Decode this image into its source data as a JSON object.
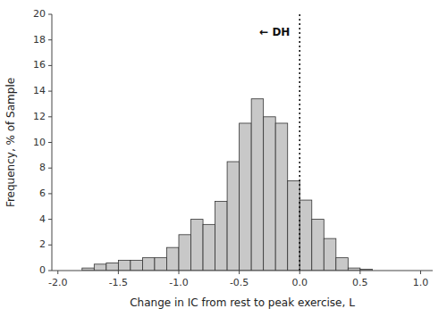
{
  "chart_data": {
    "type": "histogram",
    "bins": [
      -1.9,
      -1.8,
      -1.7,
      -1.6,
      -1.5,
      -1.4,
      -1.3,
      -1.2,
      -1.1,
      -1.0,
      -0.9,
      -0.8,
      -0.7,
      -0.6,
      -0.5,
      -0.4,
      -0.3,
      -0.2,
      -0.1,
      0.0,
      0.1,
      0.2,
      0.3,
      0.4,
      0.5,
      0.6,
      0.7,
      0.8,
      0.9,
      1.0
    ],
    "values": [
      0.0,
      0.2,
      0.5,
      0.6,
      0.8,
      0.8,
      1.0,
      1.0,
      1.8,
      2.8,
      4.0,
      3.6,
      5.4,
      8.5,
      11.5,
      13.4,
      12.0,
      11.5,
      7.0,
      5.5,
      4.0,
      2.5,
      1.0,
      0.2,
      0.1,
      0.0,
      0.0,
      0.0,
      0.0
    ],
    "color": "#c8c8c8",
    "xlim": [
      -2.05,
      1.1
    ],
    "ylim": [
      0,
      20
    ],
    "xticks": [
      {
        "value": -2.0,
        "label": "-2.0"
      },
      {
        "value": -1.5,
        "label": "-1.5"
      },
      {
        "value": -1.0,
        "label": "-1.0"
      },
      {
        "value": -0.5,
        "label": "-0.5"
      },
      {
        "value": 0.0,
        "label": "0.0"
      },
      {
        "value": 0.5,
        "label": "0.5"
      },
      {
        "value": 1.0,
        "label": "1.0"
      }
    ],
    "yticks": [
      0,
      2,
      4,
      6,
      8,
      10,
      12,
      14,
      16,
      18,
      20
    ],
    "xlabel": "Change in IC from rest to peak exercise, L",
    "ylabel": "Frequency, % of Sample",
    "annotations": [
      {
        "x": 0.0,
        "line_style": "dotted"
      },
      {
        "text": "← DH",
        "x": -0.08,
        "y": 18.6
      }
    ],
    "grid": false
  }
}
